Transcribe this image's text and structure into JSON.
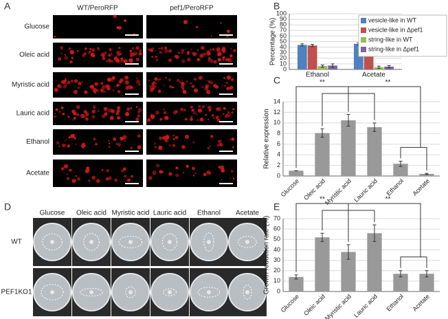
{
  "panels": {
    "A": {
      "label": "A",
      "columns": [
        "WT/PeroRFP",
        "pef1/PeroRFP"
      ],
      "rows": [
        "Glucose",
        "Oleic acid",
        "Myristic acid",
        "Lauric acid",
        "Ethanol",
        "Acetate"
      ]
    },
    "D": {
      "label": "D",
      "columns": [
        "Glucose",
        "Oleic acid",
        "Myristic acid",
        "Lauric acid",
        "Ethanol",
        "Acetate"
      ],
      "rows": [
        "WT",
        "PEF1KO1"
      ]
    }
  },
  "chart_data": [
    {
      "type": "bar",
      "panel": "B",
      "y_label": "Percentage (%)",
      "categories": [
        "Ethanol",
        "Acetate"
      ],
      "series": [
        {
          "name": "vesicle-like in WT",
          "color": "#4f81bd",
          "values": [
            44,
            46
          ],
          "errors": [
            2,
            2
          ]
        },
        {
          "name": "vesicle-like in Δpef1",
          "color": "#c0504d",
          "values": [
            43,
            46
          ],
          "errors": [
            2,
            2
          ]
        },
        {
          "name": "string-like in WT",
          "color": "#9bbb59",
          "values": [
            6,
            4
          ],
          "errors": [
            2,
            2
          ]
        },
        {
          "name": "string-like in Δpef1",
          "color": "#8064a2",
          "values": [
            7,
            5
          ],
          "errors": [
            3,
            2
          ]
        }
      ],
      "ylim": [
        0,
        100
      ],
      "yticks": [
        0,
        10,
        20,
        30,
        40,
        50,
        60,
        70,
        80,
        90,
        100
      ],
      "grid": true
    },
    {
      "type": "bar",
      "panel": "C",
      "y_label": "Relative expression",
      "categories": [
        "Glucose",
        "Oleic acid",
        "Myristic acid",
        "Lauric acid",
        "Ethanol",
        "Acetate"
      ],
      "values": [
        1,
        8.1,
        10.5,
        9.2,
        2.3,
        0.4
      ],
      "errors": [
        0,
        0.8,
        1.1,
        0.8,
        0.5,
        0.1
      ],
      "color": "#999999",
      "annotations": [
        "**",
        "**"
      ],
      "ylim": [
        0,
        14
      ],
      "yticks": [
        0,
        2,
        4,
        6,
        8,
        10,
        12,
        14
      ],
      "grid": true
    },
    {
      "type": "bar",
      "panel": "E",
      "y_label": "Growth reduction rate (%)",
      "categories": [
        "Glucose",
        "Oleic acid",
        "Myristic acid",
        "Lauric acid",
        "Ethanol",
        "Acetate"
      ],
      "values": [
        14,
        52,
        38,
        56,
        17,
        17
      ],
      "errors": [
        2,
        4,
        7,
        8,
        3,
        3
      ],
      "color": "#999999",
      "annotations": [
        "**",
        "**"
      ],
      "ylim": [
        0,
        70
      ],
      "yticks": [
        0,
        10,
        20,
        30,
        40,
        50,
        60,
        70
      ],
      "grid": true
    }
  ]
}
